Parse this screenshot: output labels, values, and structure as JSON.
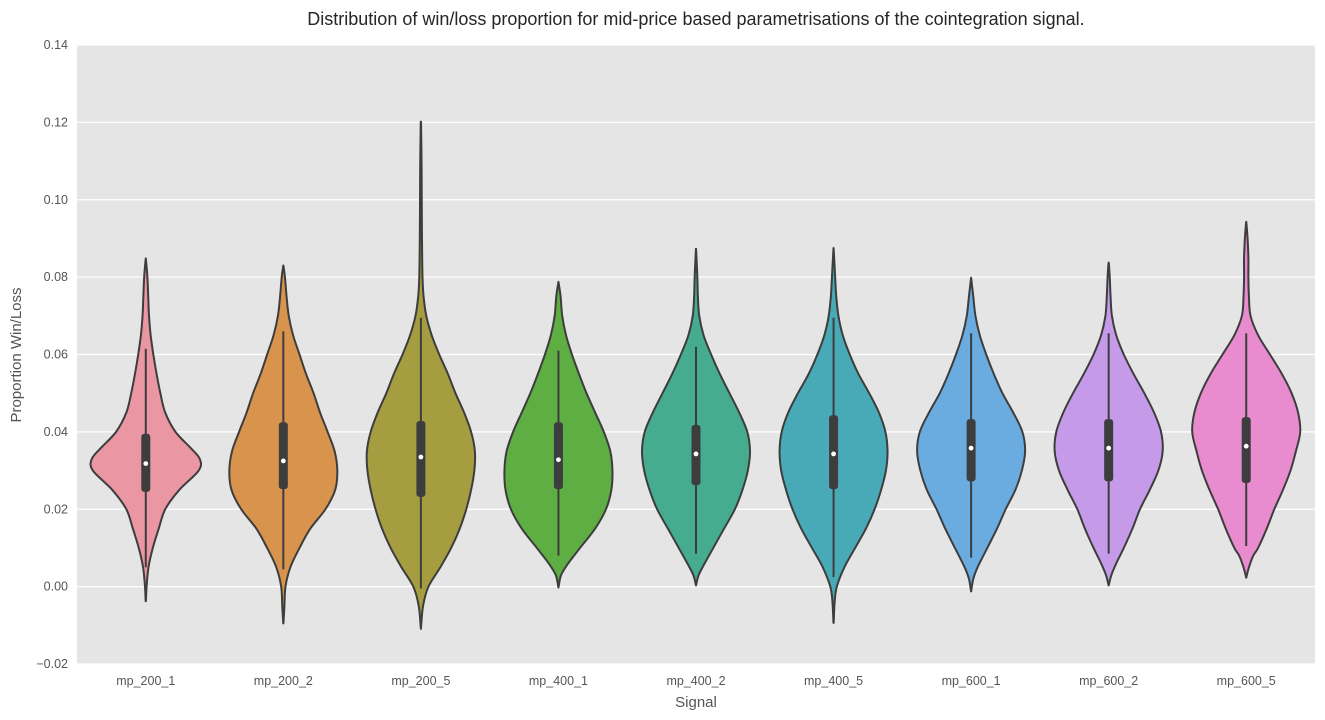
{
  "chart_data": {
    "type": "violin",
    "title": "Distribution of win/loss proportion for mid-price based parametrisations of the cointegration signal.",
    "xlabel": "Signal",
    "ylabel": "Proportion Win/Loss",
    "ylim": [
      -0.02,
      0.14
    ],
    "yticks": [
      "−0.02",
      "0.00",
      "0.02",
      "0.04",
      "0.06",
      "0.08",
      "0.10",
      "0.12",
      "0.14"
    ],
    "grid": true,
    "categories": [
      "mp_200_1",
      "mp_200_2",
      "mp_200_5",
      "mp_400_1",
      "mp_400_2",
      "mp_400_5",
      "mp_600_1",
      "mp_600_2",
      "mp_600_5"
    ],
    "colors": [
      "#ea96a3",
      "#d8944c",
      "#a59d3f",
      "#5eae44",
      "#46ac8f",
      "#48aab7",
      "#6aacdf",
      "#c59be9",
      "#e98bcf"
    ],
    "series": [
      {
        "min": -0.0035,
        "max": 0.0845,
        "whisker_low": 0.005,
        "whisker_high": 0.0615,
        "q1": 0.0245,
        "median": 0.0318,
        "q3": 0.0395,
        "profile": [
          [
            -0.0035,
            0.003
          ],
          [
            0.0,
            0.015
          ],
          [
            0.005,
            0.05
          ],
          [
            0.01,
            0.13
          ],
          [
            0.015,
            0.24
          ],
          [
            0.02,
            0.36
          ],
          [
            0.025,
            0.62
          ],
          [
            0.03,
            0.98
          ],
          [
            0.033,
            1.0
          ],
          [
            0.036,
            0.82
          ],
          [
            0.04,
            0.55
          ],
          [
            0.045,
            0.36
          ],
          [
            0.05,
            0.27
          ],
          [
            0.055,
            0.2
          ],
          [
            0.06,
            0.14
          ],
          [
            0.065,
            0.09
          ],
          [
            0.07,
            0.06
          ],
          [
            0.075,
            0.045
          ],
          [
            0.08,
            0.03
          ],
          [
            0.0845,
            0.003
          ]
        ]
      },
      {
        "min": -0.0092,
        "max": 0.0828,
        "whisker_low": 0.0045,
        "whisker_high": 0.066,
        "q1": 0.0252,
        "median": 0.0325,
        "q3": 0.0425,
        "profile": [
          [
            -0.0092,
            0.003
          ],
          [
            -0.005,
            0.02
          ],
          [
            0.0,
            0.04
          ],
          [
            0.005,
            0.13
          ],
          [
            0.01,
            0.3
          ],
          [
            0.015,
            0.5
          ],
          [
            0.02,
            0.78
          ],
          [
            0.025,
            0.96
          ],
          [
            0.03,
            1.0
          ],
          [
            0.035,
            0.95
          ],
          [
            0.04,
            0.82
          ],
          [
            0.045,
            0.68
          ],
          [
            0.05,
            0.56
          ],
          [
            0.055,
            0.42
          ],
          [
            0.06,
            0.3
          ],
          [
            0.065,
            0.18
          ],
          [
            0.07,
            0.1
          ],
          [
            0.075,
            0.06
          ],
          [
            0.08,
            0.03
          ],
          [
            0.0828,
            0.003
          ]
        ]
      },
      {
        "min": -0.0105,
        "max": 0.1195,
        "whisker_low": -0.0005,
        "whisker_high": 0.0695,
        "q1": 0.0232,
        "median": 0.0335,
        "q3": 0.0428,
        "profile": [
          [
            -0.0105,
            0.003
          ],
          [
            -0.005,
            0.04
          ],
          [
            0.0,
            0.14
          ],
          [
            0.005,
            0.36
          ],
          [
            0.01,
            0.56
          ],
          [
            0.015,
            0.72
          ],
          [
            0.02,
            0.84
          ],
          [
            0.025,
            0.93
          ],
          [
            0.03,
            0.99
          ],
          [
            0.035,
            1.0
          ],
          [
            0.04,
            0.93
          ],
          [
            0.045,
            0.8
          ],
          [
            0.05,
            0.64
          ],
          [
            0.055,
            0.5
          ],
          [
            0.06,
            0.34
          ],
          [
            0.065,
            0.2
          ],
          [
            0.07,
            0.1
          ],
          [
            0.075,
            0.05
          ],
          [
            0.08,
            0.03
          ],
          [
            0.09,
            0.02
          ],
          [
            0.1,
            0.016
          ],
          [
            0.11,
            0.012
          ],
          [
            0.1195,
            0.003
          ]
        ]
      },
      {
        "min": 0.0,
        "max": 0.0785,
        "whisker_low": 0.008,
        "whisker_high": 0.061,
        "q1": 0.0252,
        "median": 0.0328,
        "q3": 0.0425,
        "profile": [
          [
            0.0,
            0.003
          ],
          [
            0.003,
            0.05
          ],
          [
            0.006,
            0.18
          ],
          [
            0.01,
            0.4
          ],
          [
            0.015,
            0.68
          ],
          [
            0.02,
            0.88
          ],
          [
            0.025,
            0.98
          ],
          [
            0.03,
            1.0
          ],
          [
            0.035,
            0.96
          ],
          [
            0.04,
            0.84
          ],
          [
            0.045,
            0.68
          ],
          [
            0.05,
            0.52
          ],
          [
            0.055,
            0.38
          ],
          [
            0.06,
            0.25
          ],
          [
            0.065,
            0.14
          ],
          [
            0.07,
            0.07
          ],
          [
            0.075,
            0.04
          ],
          [
            0.0785,
            0.003
          ]
        ]
      },
      {
        "min": 0.0005,
        "max": 0.0868,
        "whisker_low": 0.0085,
        "whisker_high": 0.062,
        "q1": 0.0262,
        "median": 0.0343,
        "q3": 0.0418,
        "profile": [
          [
            0.0005,
            0.003
          ],
          [
            0.003,
            0.05
          ],
          [
            0.006,
            0.16
          ],
          [
            0.01,
            0.32
          ],
          [
            0.015,
            0.52
          ],
          [
            0.02,
            0.72
          ],
          [
            0.025,
            0.86
          ],
          [
            0.03,
            0.96
          ],
          [
            0.035,
            1.0
          ],
          [
            0.04,
            0.95
          ],
          [
            0.045,
            0.8
          ],
          [
            0.05,
            0.62
          ],
          [
            0.055,
            0.44
          ],
          [
            0.06,
            0.28
          ],
          [
            0.065,
            0.14
          ],
          [
            0.07,
            0.06
          ],
          [
            0.075,
            0.035
          ],
          [
            0.08,
            0.025
          ],
          [
            0.0868,
            0.003
          ]
        ]
      },
      {
        "min": -0.009,
        "max": 0.087,
        "whisker_low": 0.0025,
        "whisker_high": 0.0695,
        "q1": 0.0252,
        "median": 0.0343,
        "q3": 0.0443,
        "profile": [
          [
            -0.009,
            0.003
          ],
          [
            -0.004,
            0.02
          ],
          [
            0.0,
            0.06
          ],
          [
            0.005,
            0.2
          ],
          [
            0.01,
            0.4
          ],
          [
            0.015,
            0.6
          ],
          [
            0.02,
            0.76
          ],
          [
            0.025,
            0.88
          ],
          [
            0.03,
            0.97
          ],
          [
            0.035,
            1.0
          ],
          [
            0.04,
            0.96
          ],
          [
            0.045,
            0.84
          ],
          [
            0.05,
            0.66
          ],
          [
            0.055,
            0.46
          ],
          [
            0.06,
            0.3
          ],
          [
            0.065,
            0.17
          ],
          [
            0.07,
            0.09
          ],
          [
            0.075,
            0.05
          ],
          [
            0.08,
            0.03
          ],
          [
            0.087,
            0.003
          ]
        ]
      },
      {
        "min": -0.001,
        "max": 0.0795,
        "whisker_low": 0.0075,
        "whisker_high": 0.0655,
        "q1": 0.0272,
        "median": 0.0358,
        "q3": 0.0433,
        "profile": [
          [
            -0.001,
            0.003
          ],
          [
            0.002,
            0.04
          ],
          [
            0.005,
            0.12
          ],
          [
            0.01,
            0.3
          ],
          [
            0.015,
            0.48
          ],
          [
            0.02,
            0.64
          ],
          [
            0.025,
            0.82
          ],
          [
            0.03,
            0.94
          ],
          [
            0.035,
            1.0
          ],
          [
            0.04,
            0.95
          ],
          [
            0.045,
            0.78
          ],
          [
            0.05,
            0.58
          ],
          [
            0.055,
            0.42
          ],
          [
            0.06,
            0.28
          ],
          [
            0.065,
            0.16
          ],
          [
            0.07,
            0.08
          ],
          [
            0.075,
            0.04
          ],
          [
            0.0795,
            0.003
          ]
        ]
      },
      {
        "min": 0.0005,
        "max": 0.0835,
        "whisker_low": 0.0085,
        "whisker_high": 0.0655,
        "q1": 0.0272,
        "median": 0.0358,
        "q3": 0.0433,
        "profile": [
          [
            0.0005,
            0.003
          ],
          [
            0.003,
            0.05
          ],
          [
            0.006,
            0.14
          ],
          [
            0.01,
            0.28
          ],
          [
            0.015,
            0.44
          ],
          [
            0.02,
            0.58
          ],
          [
            0.025,
            0.76
          ],
          [
            0.03,
            0.92
          ],
          [
            0.035,
            1.0
          ],
          [
            0.04,
            0.97
          ],
          [
            0.045,
            0.84
          ],
          [
            0.05,
            0.66
          ],
          [
            0.055,
            0.46
          ],
          [
            0.06,
            0.28
          ],
          [
            0.065,
            0.14
          ],
          [
            0.07,
            0.06
          ],
          [
            0.075,
            0.035
          ],
          [
            0.08,
            0.02
          ],
          [
            0.0835,
            0.003
          ]
        ]
      },
      {
        "min": 0.0025,
        "max": 0.094,
        "whisker_low": 0.0105,
        "whisker_high": 0.0655,
        "q1": 0.0268,
        "median": 0.0363,
        "q3": 0.0438,
        "profile": [
          [
            0.0025,
            0.003
          ],
          [
            0.005,
            0.05
          ],
          [
            0.008,
            0.13
          ],
          [
            0.01,
            0.22
          ],
          [
            0.015,
            0.38
          ],
          [
            0.02,
            0.52
          ],
          [
            0.025,
            0.68
          ],
          [
            0.03,
            0.82
          ],
          [
            0.035,
            0.92
          ],
          [
            0.04,
            1.0
          ],
          [
            0.045,
            0.96
          ],
          [
            0.05,
            0.84
          ],
          [
            0.055,
            0.66
          ],
          [
            0.06,
            0.44
          ],
          [
            0.065,
            0.22
          ],
          [
            0.07,
            0.08
          ],
          [
            0.075,
            0.05
          ],
          [
            0.08,
            0.04
          ],
          [
            0.085,
            0.04
          ],
          [
            0.09,
            0.025
          ],
          [
            0.094,
            0.003
          ]
        ]
      }
    ]
  }
}
